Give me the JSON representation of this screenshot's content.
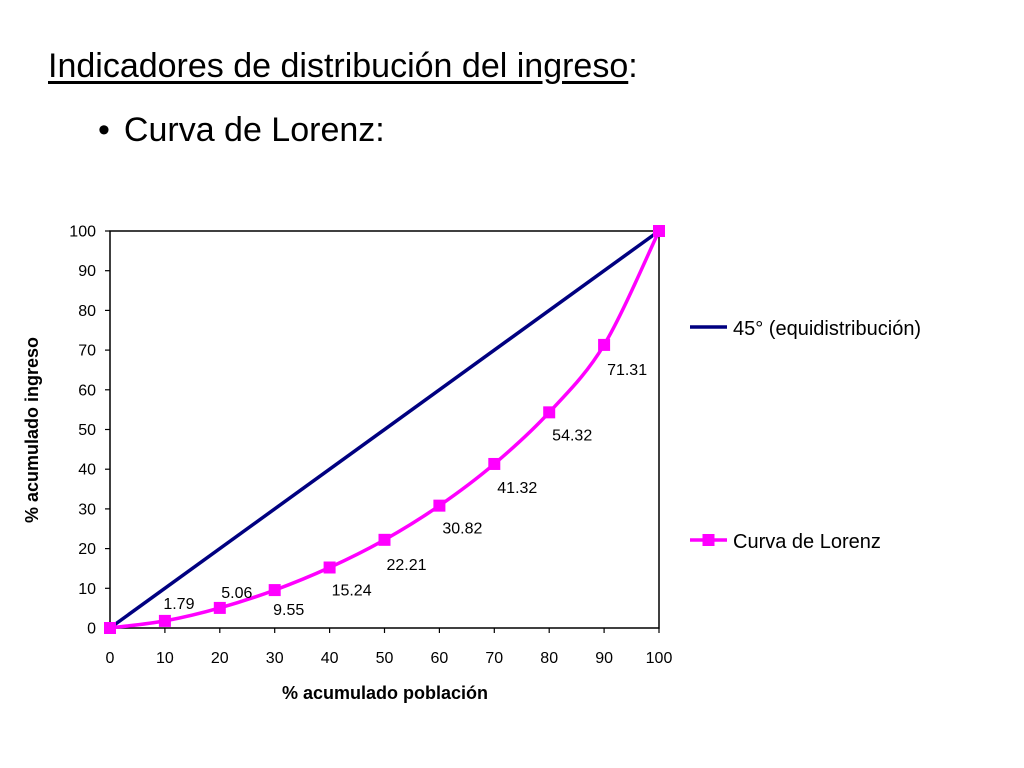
{
  "slide": {
    "title_main": "Indicadores de distribución del ingreso",
    "title_suffix": ":",
    "bullet_symbol": "•",
    "bullet_text": "Curva de Lorenz:"
  },
  "chart_data": {
    "type": "line",
    "xlabel": "% acumulado población",
    "ylabel": "% acumulado ingreso",
    "xlim": [
      0,
      100
    ],
    "ylim": [
      0,
      100
    ],
    "x_ticks": [
      "0",
      "10",
      "20",
      "30",
      "40",
      "50",
      "60",
      "70",
      "80",
      "90",
      "100"
    ],
    "y_ticks": [
      "0",
      "10",
      "20",
      "30",
      "40",
      "50",
      "60",
      "70",
      "80",
      "90",
      "100"
    ],
    "grid": false,
    "legend_position": "right",
    "series": [
      {
        "name": "45° (equidistribución)",
        "color": "#000080",
        "marker": "none",
        "x": [
          0,
          100
        ],
        "y": [
          0,
          100
        ]
      },
      {
        "name": "Curva de Lorenz",
        "color": "#FF00FF",
        "marker": "square",
        "x": [
          0,
          10,
          20,
          30,
          40,
          50,
          60,
          70,
          80,
          90,
          100
        ],
        "y": [
          0,
          1.79,
          5.06,
          9.55,
          15.24,
          22.21,
          30.82,
          41.32,
          54.32,
          71.31,
          100
        ],
        "data_labels": [
          "",
          "1.79",
          "5.06",
          "9.55",
          "15.24",
          "22.21",
          "30.82",
          "41.32",
          "54.32",
          "71.31",
          ""
        ]
      }
    ]
  }
}
